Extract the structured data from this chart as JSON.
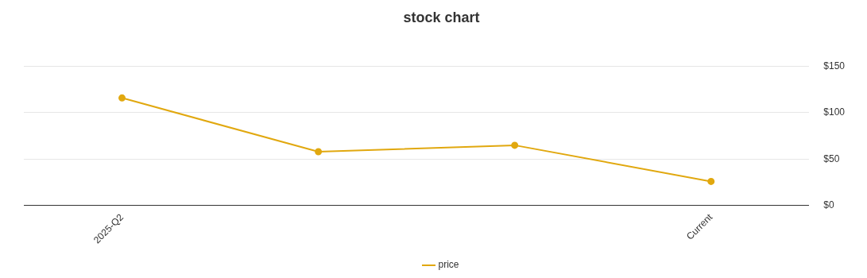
{
  "chart_data": {
    "type": "line",
    "title": "stock chart",
    "categories": [
      "2025-Q2",
      null,
      null,
      "Current"
    ],
    "series": [
      {
        "name": "price",
        "color": "#e1a80f",
        "values": [
          116,
          58,
          65,
          26
        ]
      }
    ],
    "ylim": [
      0,
      150
    ],
    "yticks": [
      {
        "value": 0,
        "label": "$0"
      },
      {
        "value": 50,
        "label": "$50"
      },
      {
        "value": 100,
        "label": "$100"
      },
      {
        "value": 150,
        "label": "$150"
      }
    ],
    "grid": "y",
    "legend": "bottom",
    "marker": "circle",
    "line_style": "solid"
  }
}
